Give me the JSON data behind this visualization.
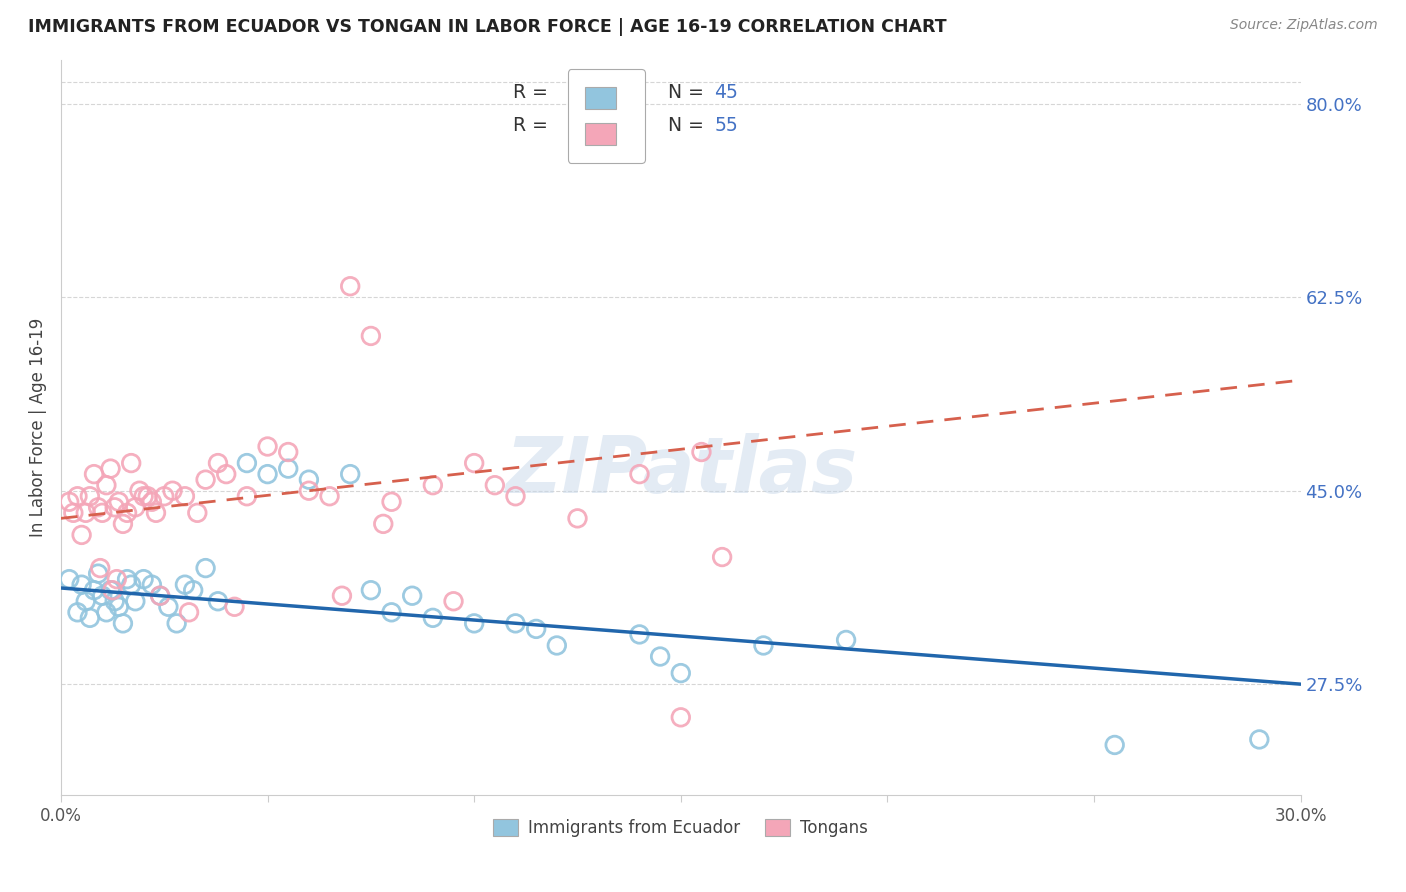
{
  "title": "IMMIGRANTS FROM ECUADOR VS TONGAN IN LABOR FORCE | AGE 16-19 CORRELATION CHART",
  "source": "Source: ZipAtlas.com",
  "ylabel": "In Labor Force | Age 16-19",
  "right_yticks": [
    27.5,
    45.0,
    62.5,
    80.0
  ],
  "right_ytick_labels": [
    "27.5%",
    "45.0%",
    "62.5%",
    "80.0%"
  ],
  "blue_color": "#92c5de",
  "pink_color": "#f4a6b8",
  "blue_line_color": "#2166ac",
  "pink_line_color": "#d6604d",
  "watermark": "ZIPatlas",
  "blue_scatter_x": [
    0.2,
    0.4,
    0.5,
    0.6,
    0.7,
    0.8,
    0.9,
    1.0,
    1.1,
    1.2,
    1.3,
    1.4,
    1.5,
    1.6,
    1.7,
    1.8,
    2.0,
    2.2,
    2.4,
    2.6,
    2.8,
    3.0,
    3.2,
    3.5,
    3.8,
    4.5,
    5.0,
    5.5,
    6.0,
    7.0,
    7.5,
    8.0,
    8.5,
    9.0,
    10.0,
    11.0,
    11.5,
    12.0,
    14.0,
    14.5,
    15.0,
    17.0,
    19.0,
    25.5,
    29.0
  ],
  "blue_scatter_y": [
    37.0,
    34.0,
    36.5,
    35.0,
    33.5,
    36.0,
    37.5,
    35.5,
    34.0,
    36.0,
    35.0,
    34.5,
    33.0,
    37.0,
    36.5,
    35.0,
    37.0,
    36.5,
    35.5,
    34.5,
    33.0,
    36.5,
    36.0,
    38.0,
    35.0,
    47.5,
    46.5,
    47.0,
    46.0,
    46.5,
    36.0,
    34.0,
    35.5,
    33.5,
    33.0,
    33.0,
    32.5,
    31.0,
    32.0,
    30.0,
    28.5,
    31.0,
    31.5,
    22.0,
    22.5
  ],
  "pink_scatter_x": [
    0.2,
    0.3,
    0.4,
    0.5,
    0.6,
    0.7,
    0.8,
    0.9,
    1.0,
    1.1,
    1.2,
    1.3,
    1.4,
    1.5,
    1.6,
    1.7,
    1.8,
    1.9,
    2.0,
    2.1,
    2.2,
    2.3,
    2.5,
    2.7,
    3.0,
    3.3,
    3.5,
    3.8,
    4.0,
    4.5,
    5.0,
    5.5,
    6.0,
    6.5,
    7.0,
    7.5,
    7.8,
    8.0,
    9.0,
    10.0,
    10.5,
    11.0,
    12.5,
    14.0,
    15.0,
    15.5,
    16.0,
    2.4,
    1.25,
    1.35,
    0.95,
    6.8,
    9.5,
    4.2,
    3.1
  ],
  "pink_scatter_y": [
    44.0,
    43.0,
    44.5,
    41.0,
    43.0,
    44.5,
    46.5,
    43.5,
    43.0,
    45.5,
    47.0,
    43.5,
    44.0,
    42.0,
    43.0,
    47.5,
    43.5,
    45.0,
    44.5,
    44.5,
    44.0,
    43.0,
    44.5,
    45.0,
    44.5,
    43.0,
    46.0,
    47.5,
    46.5,
    44.5,
    49.0,
    48.5,
    45.0,
    44.5,
    63.5,
    59.0,
    42.0,
    44.0,
    45.5,
    47.5,
    45.5,
    44.5,
    42.5,
    46.5,
    24.5,
    48.5,
    39.0,
    35.5,
    36.0,
    37.0,
    38.0,
    35.5,
    35.0,
    34.5,
    34.0
  ],
  "xmin": 0.0,
  "xmax": 30.0,
  "ymin": 17.5,
  "ymax": 84.0,
  "blue_trend_x0": 0.0,
  "blue_trend_y0": 36.2,
  "blue_trend_x1": 30.0,
  "blue_trend_y1": 27.5,
  "pink_trend_x0": 0.0,
  "pink_trend_y0": 42.5,
  "pink_trend_x1": 30.0,
  "pink_trend_y1": 55.0,
  "grid_color": "#cccccc",
  "background_color": "#ffffff",
  "top_grid_y": 82.0,
  "xtick_minor": [
    5,
    10,
    15,
    20,
    25
  ]
}
